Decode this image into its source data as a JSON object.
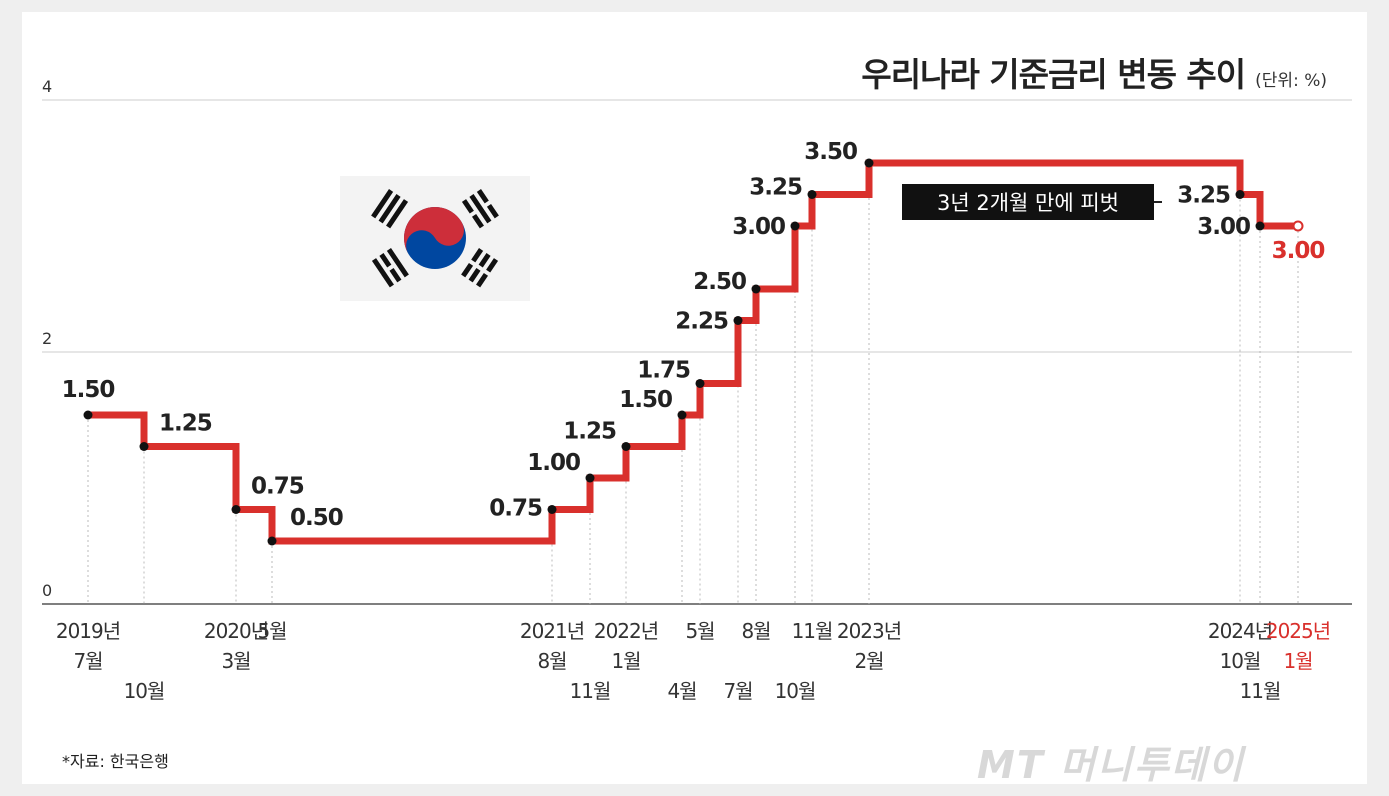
{
  "title": "우리나라 기준금리 변동 추이",
  "unit": "(단위: %)",
  "source": "*자료: 한국은행",
  "watermark": "MT 머니투데이",
  "annotation": "3년 2개월 만에 피벗",
  "colors": {
    "line": "#d9302c",
    "highlight": "#d9302c",
    "text": "#222222",
    "grid": "#cccccc",
    "annotation_bg": "#111111",
    "annotation_text": "#ffffff",
    "flag_red": "#cd2e3a",
    "flag_blue": "#0047a0"
  },
  "icons": {
    "flag": "south-korea-flag-icon",
    "dot": "dot-icon"
  },
  "chart_data": {
    "type": "line",
    "step": true,
    "ylim": [
      0,
      4
    ],
    "y_ticks": [
      "0",
      "2",
      "4"
    ],
    "points": [
      {
        "date": "2019-07",
        "value": 1.5,
        "label": "1.50",
        "xlabel": [
          "2019년",
          "7월"
        ]
      },
      {
        "date": "2019-10",
        "value": 1.25,
        "label": "1.25",
        "xlabel": [
          "",
          "10월"
        ]
      },
      {
        "date": "2020-03",
        "value": 0.75,
        "label": "0.75",
        "xlabel": [
          "2020년",
          "3월"
        ]
      },
      {
        "date": "2020-05",
        "value": 0.5,
        "label": "0.50",
        "xlabel": [
          "5월",
          ""
        ]
      },
      {
        "date": "2021-08",
        "value": 0.75,
        "label": "0.75",
        "xlabel": [
          "2021년",
          "8월"
        ]
      },
      {
        "date": "2021-11",
        "value": 1.0,
        "label": "1.00",
        "xlabel": [
          "",
          "11월"
        ]
      },
      {
        "date": "2022-01",
        "value": 1.25,
        "label": "1.25",
        "xlabel": [
          "2022년",
          "1월"
        ]
      },
      {
        "date": "2022-04",
        "value": 1.5,
        "label": "1.50",
        "xlabel": [
          "",
          "4월"
        ]
      },
      {
        "date": "2022-05",
        "value": 1.75,
        "label": "1.75",
        "xlabel": [
          "5월",
          ""
        ]
      },
      {
        "date": "2022-07",
        "value": 2.25,
        "label": "2.25",
        "xlabel": [
          "",
          "7월"
        ]
      },
      {
        "date": "2022-08",
        "value": 2.5,
        "label": "2.50",
        "xlabel": [
          "8월",
          ""
        ]
      },
      {
        "date": "2022-10",
        "value": 3.0,
        "label": "3.00",
        "xlabel": [
          "",
          "10월"
        ]
      },
      {
        "date": "2022-11",
        "value": 3.25,
        "label": "3.25",
        "xlabel": [
          "11월",
          ""
        ]
      },
      {
        "date": "2023-02",
        "value": 3.5,
        "label": "3.50",
        "xlabel": [
          "2023년",
          "2월"
        ]
      },
      {
        "date": "2024-10",
        "value": 3.25,
        "label": "3.25",
        "xlabel": [
          "2024년",
          "10월"
        ]
      },
      {
        "date": "2024-11",
        "value": 3.0,
        "label": "3.00",
        "xlabel": [
          "",
          "11월"
        ]
      },
      {
        "date": "2025-01",
        "value": 3.0,
        "label": "3.00",
        "xlabel": [
          "2025년",
          "1월"
        ],
        "highlight": true
      }
    ]
  }
}
